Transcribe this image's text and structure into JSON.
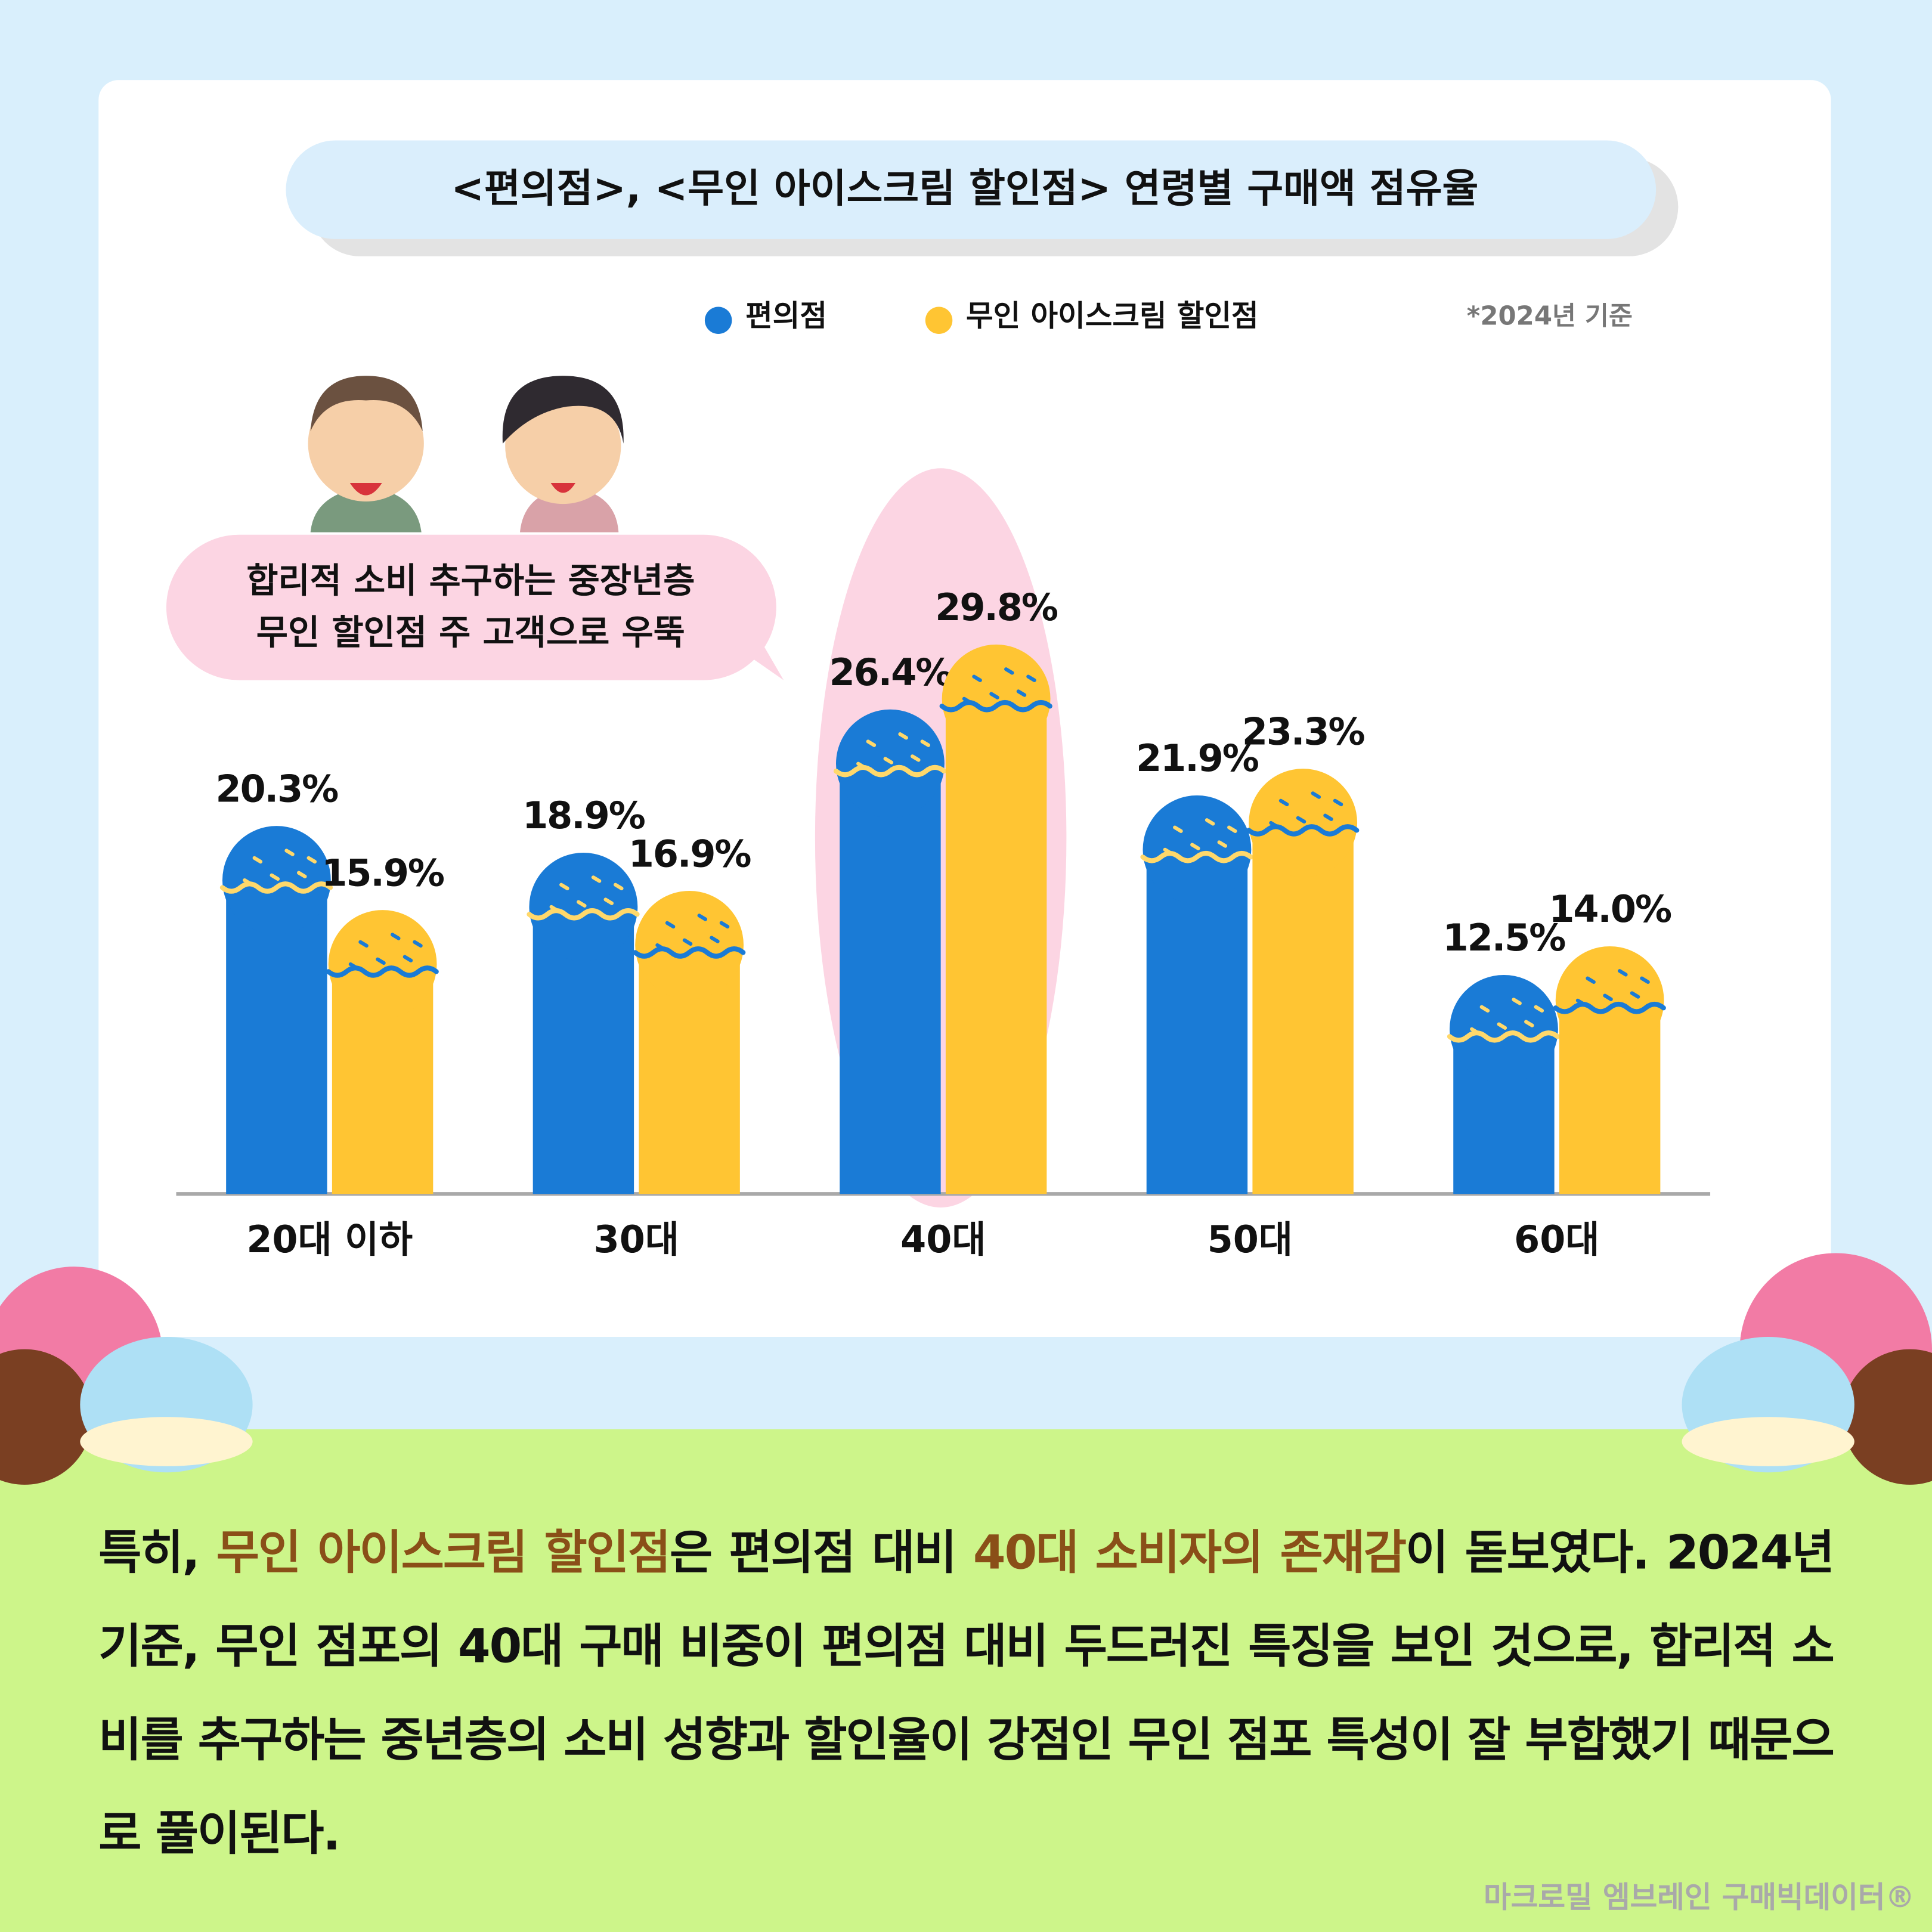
{
  "chart_data": {
    "type": "bar",
    "title": "<편의점>, <무인 아이스크림 할인점> 연령별 구매액 점유율",
    "note": "*2024년 기준",
    "annotation": [
      "합리적 소비 추구하는 중장년층",
      "무인 할인점 주 고객으로 우뚝"
    ],
    "categories": [
      "20대 이하",
      "30대",
      "40대",
      "50대",
      "60대"
    ],
    "series": [
      {
        "name": "편의점",
        "color": "#1a7bd6",
        "values": [
          20.3,
          18.9,
          26.4,
          21.9,
          12.5
        ],
        "value_labels": [
          "20.3%",
          "18.9%",
          "26.4%",
          "21.9%",
          "12.5%"
        ]
      },
      {
        "name": "무인 아이스크림 할인점",
        "color": "#ffc533",
        "values": [
          15.9,
          16.9,
          29.8,
          23.3,
          14.0
        ],
        "value_labels": [
          "15.9%",
          "16.9%",
          "29.8%",
          "23.3%",
          "14.0%"
        ]
      }
    ],
    "highlight_category": 2,
    "legend": "top"
  },
  "body": {
    "segments": [
      {
        "text": "특히, ",
        "highlight": false
      },
      {
        "text": "무인 아이스크림 할인점",
        "highlight": true
      },
      {
        "text": "은 편의점 대비 ",
        "highlight": false
      },
      {
        "text": "40대 소비자의 존재감",
        "highlight": true
      },
      {
        "text": "이 돋보였다. 2024년 기준, 무인 점포의 40대 구매 비중이 편의점 대비 두드러진 특징을 보인 것으로, 합리적 소비를 추구하는 중년층의 소비 성향과 할인율이 강점인 무인 점포 특성이 잘 부합했기 때문으로 풀이된다.",
        "highlight": false
      }
    ]
  },
  "footer": "마크로밀 엠브레인 구매빅데이터®"
}
